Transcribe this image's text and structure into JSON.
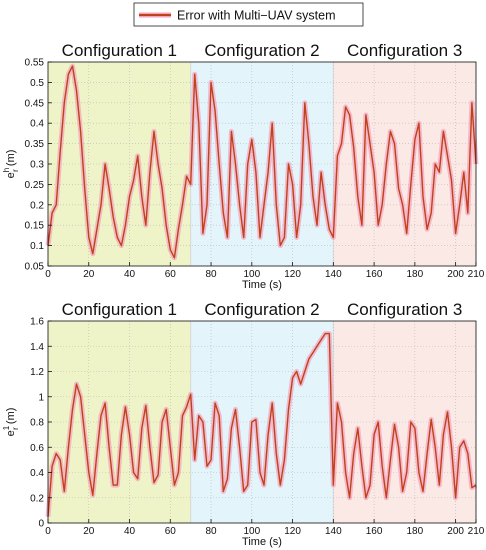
{
  "legend": {
    "label": "Error with Multi−UAV system"
  },
  "colors": {
    "line": "#c0421a",
    "shadow": "#f2a3bd",
    "config1_bg": "#eef3c8",
    "config2_bg": "#e3f5fa",
    "config3_bg": "#fbe9e6",
    "grid": "#b9b9b9"
  },
  "chart_data": [
    {
      "type": "line",
      "xlabel": "Time (s)",
      "ylabel": "e",
      "ylabel_sup": "h",
      "ylabel_sub": "r",
      "ylabel_unit": " (m)",
      "xlim": [
        0,
        210
      ],
      "ylim": [
        0.05,
        0.55
      ],
      "xticks": [
        0,
        20,
        40,
        60,
        80,
        100,
        120,
        140,
        160,
        180,
        200,
        210
      ],
      "yticks": [
        0.05,
        0.1,
        0.15,
        0.2,
        0.25,
        0.3,
        0.35,
        0.4,
        0.45,
        0.5,
        0.55
      ],
      "ytick_labels": [
        "0.05",
        "0.1",
        "0.15",
        "0.2",
        "0.25",
        "0.3",
        "0.35",
        "0.4",
        "0.45",
        "0.5",
        "0.55"
      ],
      "grid": true,
      "legend": "top-center",
      "regions": [
        {
          "label": "Configuration 1",
          "x0": 0,
          "x1": 70
        },
        {
          "label": "Configuration 2",
          "x0": 70,
          "x1": 140
        },
        {
          "label": "Configuration 3",
          "x0": 140,
          "x1": 210
        }
      ],
      "series": [
        {
          "name": "Error with Multi−UAV system",
          "x": [
            0,
            2,
            4,
            6,
            8,
            10,
            12,
            14,
            16,
            18,
            20,
            22,
            24,
            26,
            28,
            30,
            32,
            34,
            36,
            38,
            40,
            42,
            44,
            46,
            48,
            50,
            52,
            54,
            56,
            58,
            60,
            62,
            64,
            66,
            68,
            70,
            72,
            74,
            76,
            78,
            80,
            82,
            84,
            86,
            88,
            90,
            92,
            94,
            96,
            98,
            100,
            102,
            104,
            106,
            108,
            110,
            112,
            114,
            116,
            118,
            120,
            122,
            124,
            126,
            128,
            130,
            132,
            134,
            136,
            138,
            140,
            142,
            144,
            146,
            148,
            150,
            152,
            154,
            156,
            158,
            160,
            162,
            164,
            166,
            168,
            170,
            172,
            174,
            176,
            178,
            180,
            182,
            184,
            186,
            188,
            190,
            192,
            194,
            196,
            198,
            200,
            202,
            204,
            206,
            208,
            210
          ],
          "y": [
            0.1,
            0.18,
            0.2,
            0.33,
            0.45,
            0.52,
            0.54,
            0.48,
            0.38,
            0.24,
            0.12,
            0.08,
            0.14,
            0.2,
            0.3,
            0.24,
            0.17,
            0.12,
            0.1,
            0.15,
            0.22,
            0.26,
            0.32,
            0.22,
            0.15,
            0.28,
            0.38,
            0.3,
            0.24,
            0.15,
            0.09,
            0.07,
            0.14,
            0.2,
            0.27,
            0.25,
            0.52,
            0.4,
            0.13,
            0.2,
            0.5,
            0.43,
            0.3,
            0.18,
            0.12,
            0.38,
            0.3,
            0.2,
            0.12,
            0.3,
            0.36,
            0.28,
            0.12,
            0.2,
            0.28,
            0.4,
            0.2,
            0.1,
            0.12,
            0.3,
            0.25,
            0.12,
            0.2,
            0.45,
            0.35,
            0.22,
            0.15,
            0.28,
            0.2,
            0.14,
            0.12,
            0.32,
            0.35,
            0.44,
            0.42,
            0.34,
            0.22,
            0.15,
            0.42,
            0.35,
            0.28,
            0.15,
            0.2,
            0.3,
            0.38,
            0.35,
            0.24,
            0.2,
            0.13,
            0.25,
            0.36,
            0.4,
            0.22,
            0.14,
            0.18,
            0.3,
            0.28,
            0.38,
            0.32,
            0.26,
            0.13,
            0.2,
            0.28,
            0.18,
            0.45,
            0.3
          ]
        }
      ]
    },
    {
      "type": "line",
      "xlabel": "Time (s)",
      "ylabel": "e",
      "ylabel_sup": "1",
      "ylabel_sub": "r",
      "ylabel_unit": " (m)",
      "xlim": [
        0,
        210
      ],
      "ylim": [
        0,
        1.6
      ],
      "xticks": [
        0,
        20,
        40,
        60,
        80,
        100,
        120,
        140,
        160,
        180,
        200,
        210
      ],
      "yticks": [
        0,
        0.2,
        0.4,
        0.6,
        0.8,
        1,
        1.2,
        1.4,
        1.6
      ],
      "ytick_labels": [
        "0",
        "0.2",
        "0.4",
        "0.6",
        "0.8",
        "1",
        "1.2",
        "1.4",
        "1.6"
      ],
      "grid": true,
      "regions": [
        {
          "label": "Configuration 1",
          "x0": 0,
          "x1": 70
        },
        {
          "label": "Configuration 2",
          "x0": 70,
          "x1": 140
        },
        {
          "label": "Configuration 3",
          "x0": 140,
          "x1": 210
        }
      ],
      "series": [
        {
          "name": "Error with Multi−UAV system",
          "x": [
            0,
            2,
            4,
            6,
            8,
            10,
            12,
            14,
            16,
            18,
            20,
            22,
            24,
            26,
            28,
            30,
            32,
            34,
            36,
            38,
            40,
            42,
            44,
            46,
            48,
            50,
            52,
            54,
            56,
            58,
            60,
            62,
            64,
            66,
            68,
            70,
            72,
            74,
            76,
            78,
            80,
            82,
            84,
            86,
            88,
            90,
            92,
            94,
            96,
            98,
            100,
            102,
            104,
            106,
            108,
            110,
            112,
            114,
            116,
            118,
            120,
            122,
            124,
            126,
            128,
            130,
            132,
            134,
            136,
            138,
            140,
            142,
            144,
            146,
            148,
            150,
            152,
            154,
            156,
            158,
            160,
            162,
            164,
            166,
            168,
            170,
            172,
            174,
            176,
            178,
            180,
            182,
            184,
            186,
            188,
            190,
            192,
            194,
            196,
            198,
            200,
            202,
            204,
            206,
            208,
            210
          ],
          "y": [
            0.05,
            0.45,
            0.55,
            0.5,
            0.25,
            0.6,
            0.9,
            1.1,
            1.0,
            0.7,
            0.4,
            0.22,
            0.55,
            0.85,
            0.95,
            0.6,
            0.3,
            0.3,
            0.7,
            0.92,
            0.7,
            0.4,
            0.35,
            0.75,
            0.93,
            0.6,
            0.32,
            0.38,
            0.8,
            0.9,
            0.6,
            0.3,
            0.4,
            0.85,
            0.92,
            1.02,
            0.5,
            0.85,
            0.8,
            0.45,
            0.5,
            0.95,
            0.85,
            0.25,
            0.35,
            0.75,
            0.9,
            0.6,
            0.25,
            0.3,
            0.8,
            0.82,
            0.4,
            0.3,
            0.7,
            0.95,
            0.55,
            0.3,
            0.5,
            0.9,
            1.15,
            1.2,
            1.1,
            1.2,
            1.3,
            1.35,
            1.4,
            1.45,
            1.5,
            1.5,
            0.3,
            0.95,
            0.8,
            0.4,
            0.2,
            0.55,
            0.75,
            0.45,
            0.2,
            0.3,
            0.7,
            0.8,
            0.45,
            0.2,
            0.5,
            0.78,
            0.6,
            0.25,
            0.4,
            0.8,
            0.75,
            0.4,
            0.25,
            0.55,
            0.82,
            0.6,
            0.3,
            0.7,
            0.88,
            0.6,
            0.2,
            0.6,
            0.65,
            0.55,
            0.28,
            0.3
          ]
        }
      ]
    }
  ]
}
